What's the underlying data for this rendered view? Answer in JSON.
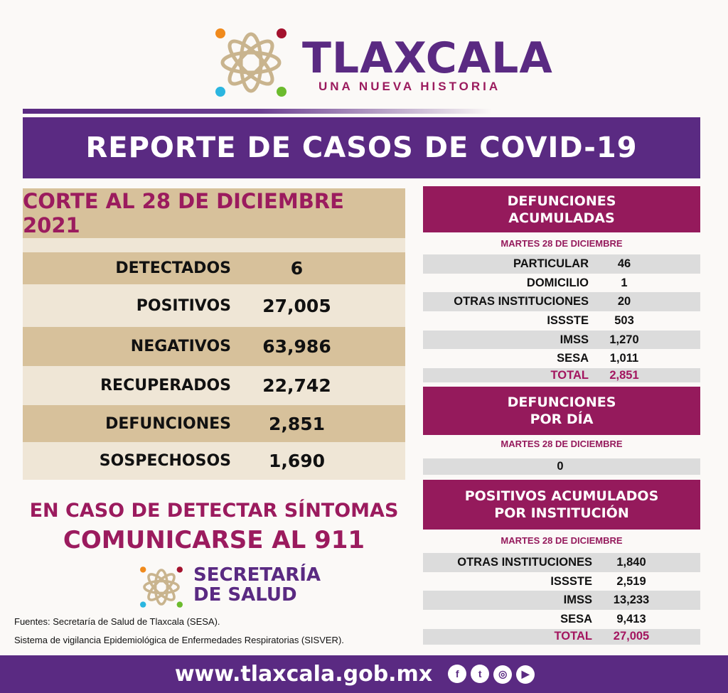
{
  "header": {
    "brand": "TLAXCALA",
    "tagline": "UNA NUEVA HISTORIA",
    "title": "REPORTE DE CASOS DE COVID-19"
  },
  "summary": {
    "title": "CORTE AL 28 DE DICIEMBRE 2021",
    "rows": [
      {
        "label": "DETECTADOS",
        "value": "6"
      },
      {
        "label": "POSITIVOS",
        "value": "27,005"
      },
      {
        "label": "NEGATIVOS",
        "value": "63,986"
      },
      {
        "label": "RECUPERADOS",
        "value": "22,742"
      },
      {
        "label": "DEFUNCIONES",
        "value": "2,851"
      },
      {
        "label": "SOSPECHOSOS",
        "value": "1,690"
      }
    ]
  },
  "defunciones_acumuladas": {
    "title_1": "DEFUNCIONES",
    "title_2": "ACUMULADAS",
    "date": "MARTES 28 DE DICIEMBRE",
    "rows": [
      {
        "label": "PARTICULAR",
        "value": "46"
      },
      {
        "label": "DOMICILIO",
        "value": "1"
      },
      {
        "label": "OTRAS INSTITUCIONES",
        "value": "20"
      },
      {
        "label": "ISSSTE",
        "value": "503"
      },
      {
        "label": "IMSS",
        "value": "1,270"
      },
      {
        "label": "SESA",
        "value": "1,011"
      },
      {
        "label": "TOTAL",
        "value": "2,851"
      }
    ]
  },
  "defunciones_dia": {
    "title_1": "DEFUNCIONES",
    "title_2": "POR DÍA",
    "date": "MARTES 28 DE DICIEMBRE",
    "value": "0"
  },
  "positivos_institucion": {
    "title_1": "POSITIVOS ACUMULADOS",
    "title_2": "POR INSTITUCIÓN",
    "date": "MARTES 28 DE DICIEMBRE",
    "rows": [
      {
        "label": "OTRAS INSTITUCIONES",
        "value": "1,840"
      },
      {
        "label": "ISSSTE",
        "value": "2,519"
      },
      {
        "label": "IMSS",
        "value": "13,233"
      },
      {
        "label": "SESA",
        "value": "9,413"
      },
      {
        "label": "TOTAL",
        "value": "27,005"
      }
    ]
  },
  "notice": {
    "line1": "EN CASO DE DETECTAR SÍNTOMAS",
    "line2": "COMUNICARSE AL 911"
  },
  "secretaria": {
    "line1": "SECRETARÍA",
    "line2": "DE SALUD"
  },
  "sources": {
    "line1": "Fuentes:  Secretaría de Salud de Tlaxcala (SESA).",
    "line2": "Sistema de vigilancia Epidemiológica de Enfermedades Respiratorias (SISVER)."
  },
  "footer": {
    "url": "www.tlaxcala.gob.mx",
    "social": [
      "facebook-icon",
      "twitter-icon",
      "instagram-icon",
      "youtube-icon"
    ]
  },
  "colors": {
    "purple": "#5a2a82",
    "magenta": "#951a5c",
    "tan": "#d7c19b",
    "light": "#efe6d6",
    "grey": "#dcdcdc"
  }
}
